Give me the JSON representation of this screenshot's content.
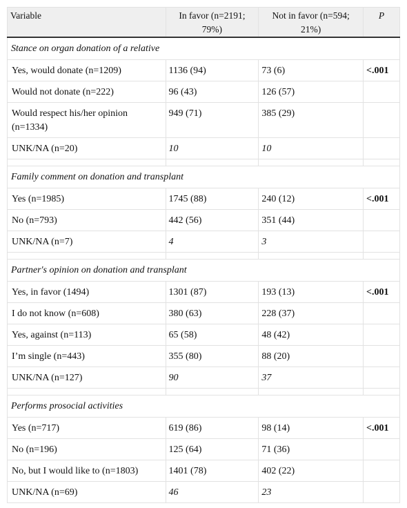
{
  "table": {
    "header": [
      "Variable",
      "In favor (n=2191; 79%)",
      "Not in favor (n=594; 21%)",
      "P"
    ],
    "sections": [
      {
        "title": "Stance on organ donation of a relative",
        "rows": [
          [
            "Yes, would donate (n=1209)",
            "1136 (94)",
            "73 (6)",
            "<.001"
          ],
          [
            "Would not donate (n=222)",
            "96 (43)",
            "126 (57)"
          ],
          [
            "Would respect his/her opinion (n=1334)",
            "949 (71)",
            "385 (29)"
          ],
          [
            "UNK/NA (n=20)",
            "10",
            "10"
          ]
        ]
      },
      {
        "title": "Family comment on donation and transplant",
        "rows": [
          [
            "Yes (n=1985)",
            "1745 (88)",
            "240 (12)",
            "<.001"
          ],
          [
            "No (n=793)",
            "442 (56)",
            "351 (44)"
          ],
          [
            "UNK/NA (n=7)",
            "4",
            "3"
          ]
        ]
      },
      {
        "title": "Partner's opinion on donation and transplant",
        "rows": [
          [
            "Yes, in favor (1494)",
            "1301 (87)",
            "193 (13)",
            "<.001"
          ],
          [
            "I do not know (n=608)",
            "380 (63)",
            "228 (37)"
          ],
          [
            "Yes, against (n=113)",
            "65 (58)",
            "48 (42)"
          ],
          [
            "I’m single (n=443)",
            "355 (80)",
            "88 (20)"
          ],
          [
            "UNK/NA (n=127)",
            "90",
            "37"
          ]
        ]
      },
      {
        "title": "Performs prosocial activities",
        "rows": [
          [
            "Yes (n=717)",
            "619 (86)",
            "98 (14)",
            "<.001"
          ],
          [
            "No (n=196)",
            "125 (64)",
            "71 (36)"
          ],
          [
            "No, but I would like to (n=1803)",
            "1401 (78)",
            "402 (22)"
          ],
          [
            "UNK/NA (n=69)",
            "46",
            "23"
          ]
        ]
      }
    ]
  }
}
